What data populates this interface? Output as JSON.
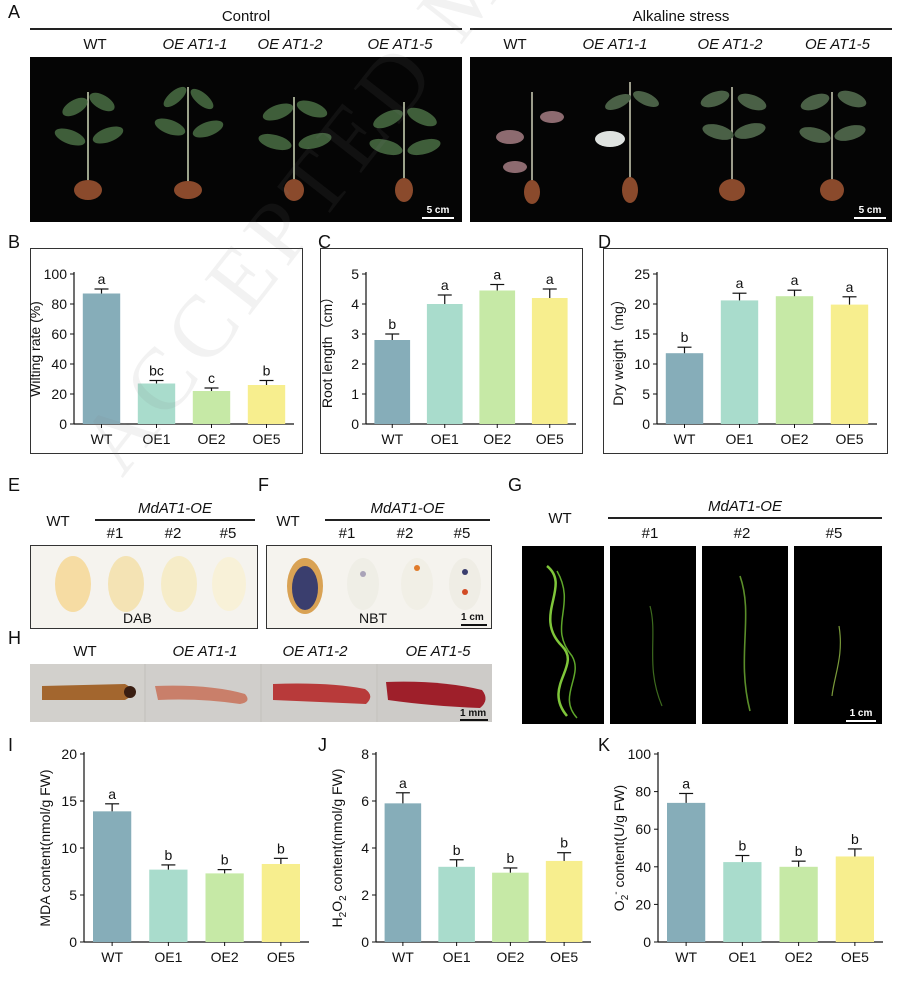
{
  "panels": {
    "A": "A",
    "B": "B",
    "C": "C",
    "D": "D",
    "E": "E",
    "F": "F",
    "G": "G",
    "H": "H",
    "I": "I",
    "J": "J",
    "K": "K"
  },
  "photoA": {
    "control_title": "Control",
    "stress_title": "Alkaline stress",
    "labels": [
      "WT",
      "OE AT1-1",
      "OE AT1-2",
      "OE AT1-5"
    ],
    "scale": "5 cm"
  },
  "photoE": {
    "group": "MdAT1-OE",
    "wt": "WT",
    "lines": [
      "#1",
      "#2",
      "#5"
    ],
    "stain": "DAB"
  },
  "photoF": {
    "group": "MdAT1-OE",
    "wt": "WT",
    "lines": [
      "#1",
      "#2",
      "#5"
    ],
    "stain": "NBT",
    "scale": "1 cm"
  },
  "photoG": {
    "group": "MdAT1-OE",
    "wt": "WT",
    "lines": [
      "#1",
      "#2",
      "#5"
    ],
    "scale": "1 cm"
  },
  "photoH": {
    "labels": [
      "WT",
      "OE AT1-1",
      "OE AT1-2",
      "OE AT1-5"
    ],
    "scale": "1 mm"
  },
  "watermark": "ACCEPTED MANUSCRIPT",
  "colors": {
    "WT": "#86adb9",
    "OE1": "#a9dccc",
    "OE2": "#c6e9a6",
    "OE5": "#f7ee8e"
  },
  "chart_data": [
    {
      "id": "B",
      "type": "bar",
      "categories": [
        "WT",
        "OE1",
        "OE2",
        "OE5"
      ],
      "values": [
        87,
        27,
        22,
        26
      ],
      "errors": [
        3,
        2,
        2,
        3
      ],
      "letters": [
        "a",
        "bc",
        "c",
        "b"
      ],
      "ylabel": "Wilting rate (%)",
      "ylim": [
        0,
        100
      ],
      "ticks": [
        0,
        20,
        40,
        60,
        80,
        100
      ],
      "frame": true
    },
    {
      "id": "C",
      "type": "bar",
      "categories": [
        "WT",
        "OE1",
        "OE2",
        "OE5"
      ],
      "values": [
        2.8,
        4.0,
        4.45,
        4.2
      ],
      "errors": [
        0.2,
        0.3,
        0.2,
        0.3
      ],
      "letters": [
        "b",
        "a",
        "a",
        "a"
      ],
      "ylabel": "Root length（cm）",
      "ylim": [
        0,
        5
      ],
      "ticks": [
        0,
        1,
        2,
        3,
        4,
        5
      ],
      "frame": true
    },
    {
      "id": "D",
      "type": "bar",
      "categories": [
        "WT",
        "OE1",
        "OE2",
        "OE5"
      ],
      "values": [
        11.8,
        20.6,
        21.3,
        19.9
      ],
      "errors": [
        1.0,
        1.2,
        1.0,
        1.3
      ],
      "letters": [
        "b",
        "a",
        "a",
        "a"
      ],
      "ylabel": "Dry weight（mg）",
      "ylim": [
        0,
        25
      ],
      "ticks": [
        0,
        5,
        10,
        15,
        20,
        25
      ],
      "frame": true
    },
    {
      "id": "I",
      "type": "bar",
      "categories": [
        "WT",
        "OE1",
        "OE2",
        "OE5"
      ],
      "values": [
        13.9,
        7.7,
        7.3,
        8.3
      ],
      "errors": [
        0.8,
        0.5,
        0.4,
        0.6
      ],
      "letters": [
        "a",
        "b",
        "b",
        "b"
      ],
      "ylabel": "MDA content(nmol/g FW)",
      "ylim": [
        0,
        20
      ],
      "ticks": [
        0,
        5,
        10,
        15,
        20
      ],
      "frame": false
    },
    {
      "id": "J",
      "type": "bar",
      "categories": [
        "WT",
        "OE1",
        "OE2",
        "OE5"
      ],
      "values": [
        5.9,
        3.2,
        2.95,
        3.45
      ],
      "errors": [
        0.45,
        0.3,
        0.2,
        0.35
      ],
      "letters": [
        "a",
        "b",
        "b",
        "b"
      ],
      "ylabel": "H2O2 content(nmol/g FW)",
      "ylim": [
        0,
        8
      ],
      "ticks": [
        0,
        2,
        4,
        6,
        8
      ],
      "frame": false
    },
    {
      "id": "K",
      "type": "bar",
      "categories": [
        "WT",
        "OE1",
        "OE2",
        "OE5"
      ],
      "values": [
        74,
        42.5,
        40,
        45.5
      ],
      "errors": [
        5,
        3.5,
        3,
        4
      ],
      "letters": [
        "a",
        "b",
        "b",
        "b"
      ],
      "ylabel": "O2- content(U/g FW)",
      "ylim": [
        0,
        100
      ],
      "ticks": [
        0,
        20,
        40,
        60,
        80,
        100
      ],
      "frame": false
    }
  ]
}
